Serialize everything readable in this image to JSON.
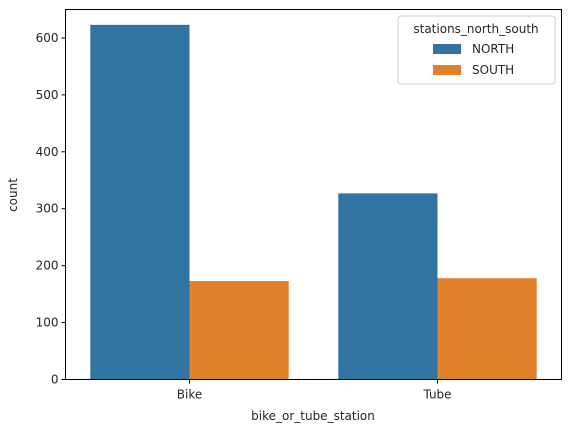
{
  "chart_data": {
    "type": "bar",
    "title": "",
    "xlabel": "bike_or_tube_station",
    "ylabel": "count",
    "categories": [
      "Bike",
      "Tube"
    ],
    "series": [
      {
        "name": "NORTH",
        "values": [
          623,
          327
        ],
        "color": "#3274a1"
      },
      {
        "name": "SOUTH",
        "values": [
          173,
          178
        ],
        "color": "#e1812c"
      }
    ],
    "ylim": [
      0,
      650
    ],
    "yticks": [
      0,
      100,
      200,
      300,
      400,
      500,
      600
    ],
    "ytick_labels": [
      "0",
      "100",
      "200",
      "300",
      "400",
      "500",
      "600"
    ],
    "grid": false,
    "legend": {
      "title": "stations_north_south",
      "placement": "top-right",
      "entries": [
        "NORTH",
        "SOUTH"
      ]
    }
  }
}
